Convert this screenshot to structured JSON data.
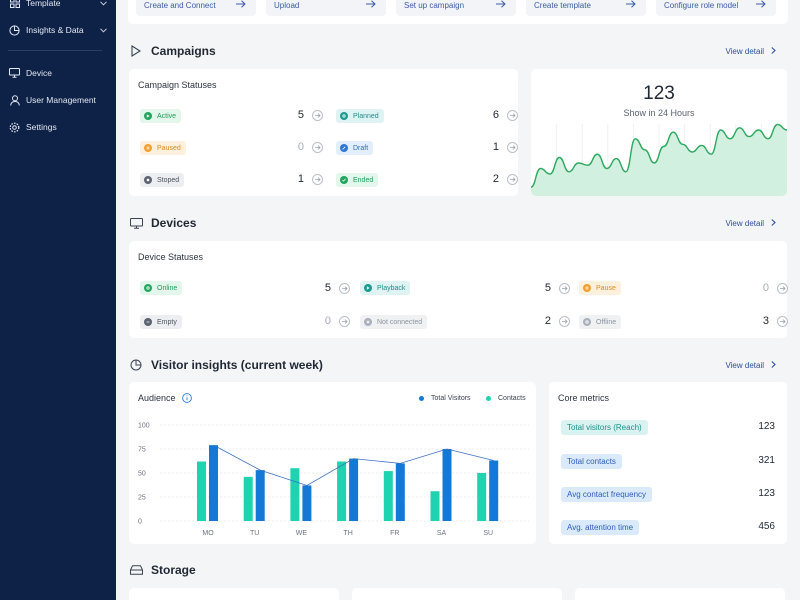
{
  "sidebar": {
    "items": [
      {
        "label": "Template",
        "icon": "grid-icon"
      },
      {
        "label": "Insights & Data",
        "icon": "pie-chart-icon"
      },
      {
        "label": "Device",
        "icon": "monitor-icon"
      },
      {
        "label": "User Management",
        "icon": "user-icon"
      },
      {
        "label": "Settings",
        "icon": "gear-icon"
      }
    ]
  },
  "quick_actions": [
    "Create and Connect",
    "Upload",
    "Set up campaign",
    "Create template",
    "Configure role model"
  ],
  "campaigns": {
    "title": "Campaigns",
    "view_detail": "View detail",
    "statuses_title": "Campaign Statuses",
    "statuses": [
      {
        "label": "Active",
        "count": "5"
      },
      {
        "label": "Planned",
        "count": "6"
      },
      {
        "label": "Paused",
        "count": "0"
      },
      {
        "label": "Draft",
        "count": "1"
      },
      {
        "label": "Stoped",
        "count": "1"
      },
      {
        "label": "Ended",
        "count": "2"
      }
    ],
    "shown_count": "123",
    "shown_label": "Show in 24 Hours"
  },
  "devices": {
    "title": "Devices",
    "view_detail": "View detail",
    "statuses_title": "Device Statuses",
    "statuses": [
      {
        "label": "Online",
        "count": "5"
      },
      {
        "label": "Playback",
        "count": "5"
      },
      {
        "label": "Pause",
        "count": "0"
      },
      {
        "label": "Empty",
        "count": "0"
      },
      {
        "label": "Not connected",
        "count": "2"
      },
      {
        "label": "Offline",
        "count": "3"
      }
    ]
  },
  "visitor_insights": {
    "title": "Visitor insights (current week)",
    "view_detail": "View detail",
    "audience_title": "Audience",
    "core_metrics_title": "Core metrics",
    "metrics": [
      {
        "label": "Total visitors (Reach)",
        "value": "123"
      },
      {
        "label": "Total contacts",
        "value": "321"
      },
      {
        "label": "Avg contact frequency",
        "value": "123"
      },
      {
        "label": "Avg. attention time",
        "value": "456"
      }
    ]
  },
  "storage": {
    "title": "Storage"
  },
  "colors": {
    "sidebar_bg": "#0e2147",
    "accent_blue": "#2c4f9e",
    "teal": "#1dd3b0",
    "blue": "#1479d6",
    "area_green": "#2ea95f"
  },
  "chart_data": [
    {
      "type": "area",
      "title": "",
      "values": [
        8,
        25,
        20,
        35,
        22,
        30,
        28,
        38,
        25,
        34,
        22,
        52,
        42,
        30,
        45,
        58,
        47,
        40,
        46,
        38,
        60,
        52,
        62,
        54,
        60,
        52,
        65,
        60
      ],
      "grid": true
    },
    {
      "type": "bar",
      "title": "Audience",
      "categories": [
        "MO",
        "TU",
        "WE",
        "TH",
        "FR",
        "SA",
        "SU"
      ],
      "series": [
        {
          "name": "Total Visitors",
          "values": [
            62,
            46,
            55,
            62,
            52,
            31,
            50
          ]
        },
        {
          "name": "Contacts",
          "values": [
            79,
            53,
            37,
            65,
            60,
            75,
            63
          ]
        }
      ],
      "line_overlay": "Contacts",
      "yticks": [
        0,
        25,
        50,
        75,
        100
      ],
      "ylim": [
        0,
        100
      ],
      "legend": "top-right",
      "grid": true
    }
  ]
}
